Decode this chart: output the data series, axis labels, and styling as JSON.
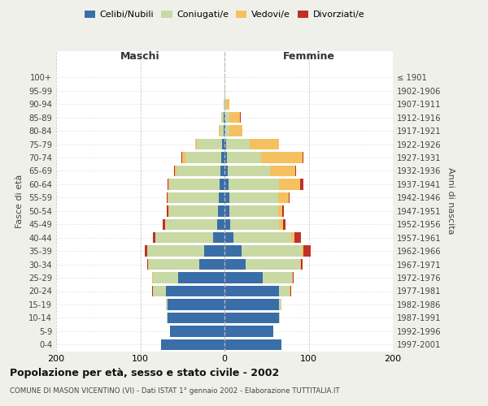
{
  "age_groups": [
    "0-4",
    "5-9",
    "10-14",
    "15-19",
    "20-24",
    "25-29",
    "30-34",
    "35-39",
    "40-44",
    "45-49",
    "50-54",
    "55-59",
    "60-64",
    "65-69",
    "70-74",
    "75-79",
    "80-84",
    "85-89",
    "90-94",
    "95-99",
    "100+"
  ],
  "birth_years": [
    "1997-2001",
    "1992-1996",
    "1987-1991",
    "1982-1986",
    "1977-1981",
    "1972-1976",
    "1967-1971",
    "1962-1966",
    "1957-1961",
    "1952-1956",
    "1947-1951",
    "1942-1946",
    "1937-1941",
    "1932-1936",
    "1927-1931",
    "1922-1926",
    "1917-1921",
    "1912-1916",
    "1907-1911",
    "1902-1906",
    "≤ 1901"
  ],
  "maschi": {
    "celibi": [
      75,
      65,
      68,
      68,
      70,
      55,
      30,
      24,
      14,
      9,
      8,
      7,
      6,
      5,
      4,
      3,
      1,
      1,
      0,
      0,
      0
    ],
    "coniugati": [
      0,
      0,
      1,
      2,
      15,
      30,
      60,
      68,
      68,
      62,
      58,
      60,
      60,
      52,
      42,
      30,
      5,
      3,
      1,
      0,
      0
    ],
    "vedovi": [
      0,
      0,
      0,
      0,
      0,
      1,
      1,
      0,
      0,
      0,
      1,
      1,
      1,
      2,
      4,
      2,
      1,
      0,
      0,
      0,
      0
    ],
    "divorziati": [
      0,
      0,
      0,
      0,
      1,
      0,
      1,
      3,
      3,
      2,
      2,
      1,
      1,
      1,
      1,
      0,
      0,
      0,
      0,
      0,
      0
    ]
  },
  "femmine": {
    "nubili": [
      68,
      58,
      65,
      65,
      65,
      45,
      25,
      20,
      11,
      7,
      6,
      6,
      5,
      4,
      3,
      2,
      1,
      1,
      0,
      0,
      0
    ],
    "coniugate": [
      0,
      0,
      1,
      3,
      12,
      35,
      65,
      72,
      68,
      58,
      58,
      58,
      60,
      50,
      40,
      28,
      5,
      5,
      2,
      0,
      0
    ],
    "vedove": [
      0,
      0,
      0,
      0,
      1,
      1,
      1,
      2,
      4,
      5,
      5,
      12,
      25,
      30,
      50,
      35,
      15,
      12,
      4,
      1,
      0
    ],
    "divorziate": [
      0,
      0,
      0,
      0,
      1,
      1,
      2,
      8,
      8,
      2,
      2,
      1,
      4,
      1,
      1,
      0,
      0,
      1,
      0,
      0,
      0
    ]
  },
  "colors": {
    "celibi": "#3a6ea8",
    "coniugati": "#c8d9a4",
    "vedovi": "#f5c060",
    "divorziati": "#c0302a"
  },
  "title": "Popolazione per età, sesso e stato civile - 2002",
  "subtitle": "COMUNE DI MASON VICENTINO (VI) - Dati ISTAT 1° gennaio 2002 - Elaborazione TUTTITALIA.IT",
  "ylabel": "Fasce di età",
  "ylabel2": "Anni di nascita",
  "xlabel_maschi": "Maschi",
  "xlabel_femmine": "Femmine",
  "xlim": 200,
  "background_color": "#f0f0eb",
  "plot_bg": "#ffffff"
}
